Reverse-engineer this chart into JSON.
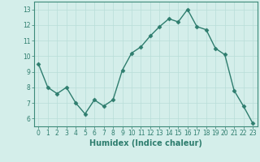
{
  "x": [
    0,
    1,
    2,
    3,
    4,
    5,
    6,
    7,
    8,
    9,
    10,
    11,
    12,
    13,
    14,
    15,
    16,
    17,
    18,
    19,
    20,
    21,
    22,
    23
  ],
  "y": [
    9.5,
    8.0,
    7.6,
    8.0,
    7.0,
    6.3,
    7.2,
    6.8,
    7.2,
    9.1,
    10.2,
    10.6,
    11.3,
    11.9,
    12.4,
    12.2,
    13.0,
    11.9,
    11.7,
    10.5,
    10.1,
    7.8,
    6.8,
    5.7
  ],
  "line_color": "#2e7d6e",
  "marker": "D",
  "markersize": 2.5,
  "linewidth": 1.0,
  "xlabel": "Humidex (Indice chaleur)",
  "xlabel_fontsize": 7,
  "xlim": [
    -0.5,
    23.5
  ],
  "ylim": [
    5.5,
    13.5
  ],
  "yticks": [
    6,
    7,
    8,
    9,
    10,
    11,
    12,
    13
  ],
  "xticks": [
    0,
    1,
    2,
    3,
    4,
    5,
    6,
    7,
    8,
    9,
    10,
    11,
    12,
    13,
    14,
    15,
    16,
    17,
    18,
    19,
    20,
    21,
    22,
    23
  ],
  "grid_color": "#b8ddd8",
  "bg_color": "#d4eeea",
  "tick_fontsize": 5.5,
  "fig_bg": "#d4eeea",
  "spine_color": "#3d8a7a"
}
